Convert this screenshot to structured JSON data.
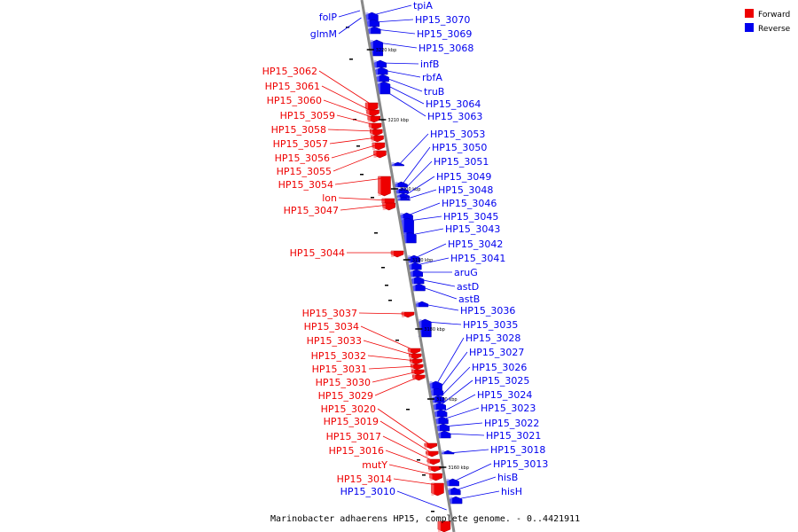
{
  "caption": "Marinobacter adhaerens HP15, complete genome. - 0..4421911",
  "colors": {
    "forward": "#ee0000",
    "reverse": "#0000ee",
    "axis": "#888888"
  },
  "legend": [
    {
      "label": "Forward",
      "strand": "forward"
    },
    {
      "label": "Reverse",
      "strand": "reverse"
    }
  ],
  "ticks": [
    "3220 kbp",
    "3210 kbp",
    "3200 kbp",
    "3190 kbp",
    "3180 kbp",
    "3170 kbp",
    "3160 kbp"
  ],
  "forward_genes": [
    "HP15_3062",
    "HP15_3061",
    "HP15_3060",
    "HP15_3059",
    "HP15_3058",
    "HP15_3057",
    "HP15_3056",
    "HP15_3055",
    "HP15_3054",
    "lon",
    "HP15_3047",
    "HP15_3044",
    "HP15_3037",
    "HP15_3034",
    "HP15_3033",
    "HP15_3032",
    "HP15_3031",
    "HP15_3030",
    "HP15_3029",
    "HP15_3020",
    "HP15_3019",
    "HP15_3017",
    "HP15_3016",
    "mutY",
    "HP15_3014"
  ],
  "reverse_genes_left": [
    "folP",
    "glmM",
    "HP15_3010"
  ],
  "reverse_genes_right": [
    "tpiA",
    "HP15_3070",
    "HP15_3069",
    "HP15_3068",
    "infB",
    "rbfA",
    "truB",
    "HP15_3064",
    "HP15_3063",
    "HP15_3053",
    "HP15_3050",
    "HP15_3051",
    "HP15_3049",
    "HP15_3048",
    "HP15_3046",
    "HP15_3045",
    "HP15_3043",
    "HP15_3042",
    "HP15_3041",
    "aruG",
    "astD",
    "astB",
    "HP15_3036",
    "HP15_3035",
    "HP15_3028",
    "HP15_3027",
    "HP15_3026",
    "HP15_3025",
    "HP15_3024",
    "HP15_3023",
    "HP15_3022",
    "HP15_3021",
    "HP15_3018",
    "HP15_3013",
    "hisB",
    "hisH"
  ]
}
